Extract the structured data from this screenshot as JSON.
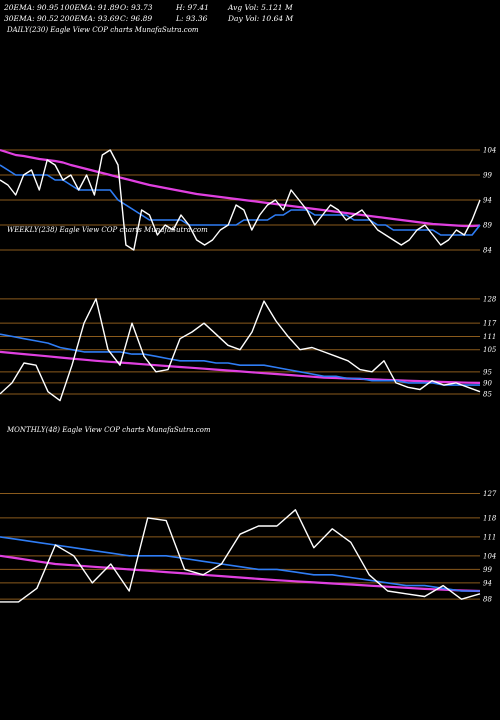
{
  "header": {
    "row1": [
      "20EMA: 90.95",
      "100EMA: 91.89",
      "O: 93.73",
      "H: 97.41",
      "Avg Vol: 5.121 M"
    ],
    "row2": [
      "30EMA: 90.52",
      "200EMA: 93.69",
      "C: 96.89",
      "L: 93.36",
      "Day Vol: 10.64  M"
    ]
  },
  "colors": {
    "background": "#000000",
    "price": "#ffffff",
    "ema20": "#2f7df5",
    "ema200": "#e040e0",
    "hline": "#8a5a1c"
  },
  "chart_data": [
    {
      "type": "line",
      "panel": "daily",
      "title": "DAILY(230) Eagle   View   COP charts MunafaSutra.com",
      "ylim": [
        80,
        110
      ],
      "tick_labels": [
        "104",
        "99",
        "94",
        "89",
        "84"
      ],
      "ticks": [
        104,
        99,
        94,
        89,
        84
      ],
      "series": [
        {
          "key": "price",
          "values": [
            98,
            97,
            95,
            99,
            100,
            96,
            102,
            101,
            98,
            99,
            96,
            99,
            95,
            103,
            104,
            101,
            85,
            84,
            92,
            91,
            87,
            89,
            88,
            91,
            89,
            86,
            85,
            86,
            88,
            89,
            93,
            92,
            88,
            91,
            93,
            94,
            92,
            96,
            94,
            92,
            89,
            91,
            93,
            92,
            90,
            91,
            92,
            90,
            88,
            87,
            86,
            85,
            86,
            88,
            89,
            87,
            85,
            86,
            88,
            87,
            90,
            94
          ]
        },
        {
          "key": "ema20",
          "values": [
            101,
            100,
            99,
            99,
            99,
            99,
            99,
            98,
            98,
            97,
            96,
            96,
            96,
            96,
            96,
            94,
            93,
            92,
            91,
            90,
            90,
            90,
            90,
            90,
            89,
            89,
            89,
            89,
            89,
            89,
            89,
            90,
            90,
            90,
            90,
            91,
            91,
            92,
            92,
            92,
            91,
            91,
            91,
            91,
            91,
            90,
            90,
            90,
            89,
            89,
            88,
            88,
            88,
            88,
            88,
            88,
            87,
            87,
            87,
            87,
            87,
            89
          ]
        },
        {
          "key": "ema200",
          "values": [
            104,
            103.5,
            103,
            102.8,
            102.5,
            102.2,
            102,
            101.8,
            101.5,
            101,
            100.6,
            100.2,
            99.8,
            99.4,
            99,
            98.6,
            98.2,
            97.8,
            97.4,
            97,
            96.7,
            96.4,
            96.1,
            95.8,
            95.5,
            95.2,
            95,
            94.8,
            94.6,
            94.4,
            94.2,
            94,
            93.8,
            93.6,
            93.4,
            93.2,
            93,
            92.8,
            92.6,
            92.4,
            92.2,
            92,
            91.8,
            91.6,
            91.4,
            91.2,
            91,
            90.8,
            90.6,
            90.4,
            90.2,
            90,
            89.8,
            89.6,
            89.4,
            89.2,
            89.1,
            89,
            88.9,
            88.8,
            88.8,
            88.9
          ]
        }
      ]
    },
    {
      "type": "line",
      "panel": "weekly",
      "title": "WEEKLY(238) Eagle   View   COP charts MunafaSutra.com",
      "ylim": [
        80,
        132
      ],
      "tick_labels": [
        "128",
        "117",
        "111",
        "105",
        "95",
        "90",
        "85"
      ],
      "ticks": [
        128,
        117,
        111,
        105,
        95,
        90,
        85
      ],
      "series": [
        {
          "key": "price",
          "values": [
            85,
            90,
            99,
            98,
            86,
            82,
            98,
            117,
            128,
            105,
            98,
            117,
            102,
            95,
            96,
            110,
            113,
            117,
            112,
            107,
            105,
            113,
            127,
            118,
            111,
            105,
            106,
            104,
            102,
            100,
            96,
            95,
            100,
            90,
            88,
            87,
            91,
            89,
            90,
            88,
            86
          ]
        },
        {
          "key": "ema20",
          "values": [
            112,
            111,
            110,
            109,
            108,
            106,
            105,
            104,
            104,
            104,
            104,
            103,
            103,
            102,
            101,
            100,
            100,
            100,
            99,
            99,
            98,
            98,
            98,
            97,
            96,
            95,
            94,
            93,
            93,
            92,
            92,
            91,
            91,
            91,
            90,
            90,
            90,
            89,
            89,
            89,
            89
          ]
        },
        {
          "key": "ema200",
          "values": [
            104,
            103.5,
            103,
            102.5,
            102,
            101.5,
            101,
            100.5,
            100,
            99.6,
            99.2,
            98.8,
            98.4,
            98,
            97.6,
            97.2,
            96.8,
            96.4,
            96,
            95.6,
            95.2,
            94.8,
            94.4,
            94,
            93.6,
            93.2,
            92.8,
            92.4,
            92.2,
            92,
            91.8,
            91.6,
            91.4,
            91.2,
            91,
            90.8,
            90.6,
            90.4,
            90.2,
            90.1,
            90
          ]
        }
      ]
    },
    {
      "type": "line",
      "panel": "monthly",
      "title": "MONTHLY(48) Eagle   View   COP charts MunafaSutra.com",
      "ylim": [
        84,
        132
      ],
      "tick_labels": [
        "127",
        "118",
        "111",
        "104",
        "99",
        "94",
        "88"
      ],
      "ticks": [
        127,
        118,
        111,
        104,
        99,
        94,
        88
      ],
      "series": [
        {
          "key": "price",
          "values": [
            87,
            87,
            92,
            108,
            104,
            94,
            101,
            91,
            118,
            117,
            99,
            97,
            101,
            112,
            115,
            115,
            121,
            107,
            114,
            109,
            97,
            91,
            90,
            89,
            93,
            88,
            90
          ]
        },
        {
          "key": "ema20",
          "values": [
            111,
            110,
            109,
            108,
            107,
            106,
            105,
            104,
            104,
            104,
            103,
            102,
            101,
            100,
            99,
            99,
            98,
            97,
            97,
            96,
            95,
            94,
            93,
            93,
            92,
            91,
            91
          ]
        },
        {
          "key": "ema200",
          "values": [
            104,
            103,
            102,
            101,
            100.5,
            100,
            99.5,
            99,
            98.5,
            98,
            97.5,
            97,
            96.5,
            96,
            95.5,
            95,
            94.6,
            94.2,
            93.8,
            93.4,
            93,
            92.6,
            92.2,
            91.8,
            91.5,
            91.2,
            91
          ]
        }
      ]
    }
  ]
}
